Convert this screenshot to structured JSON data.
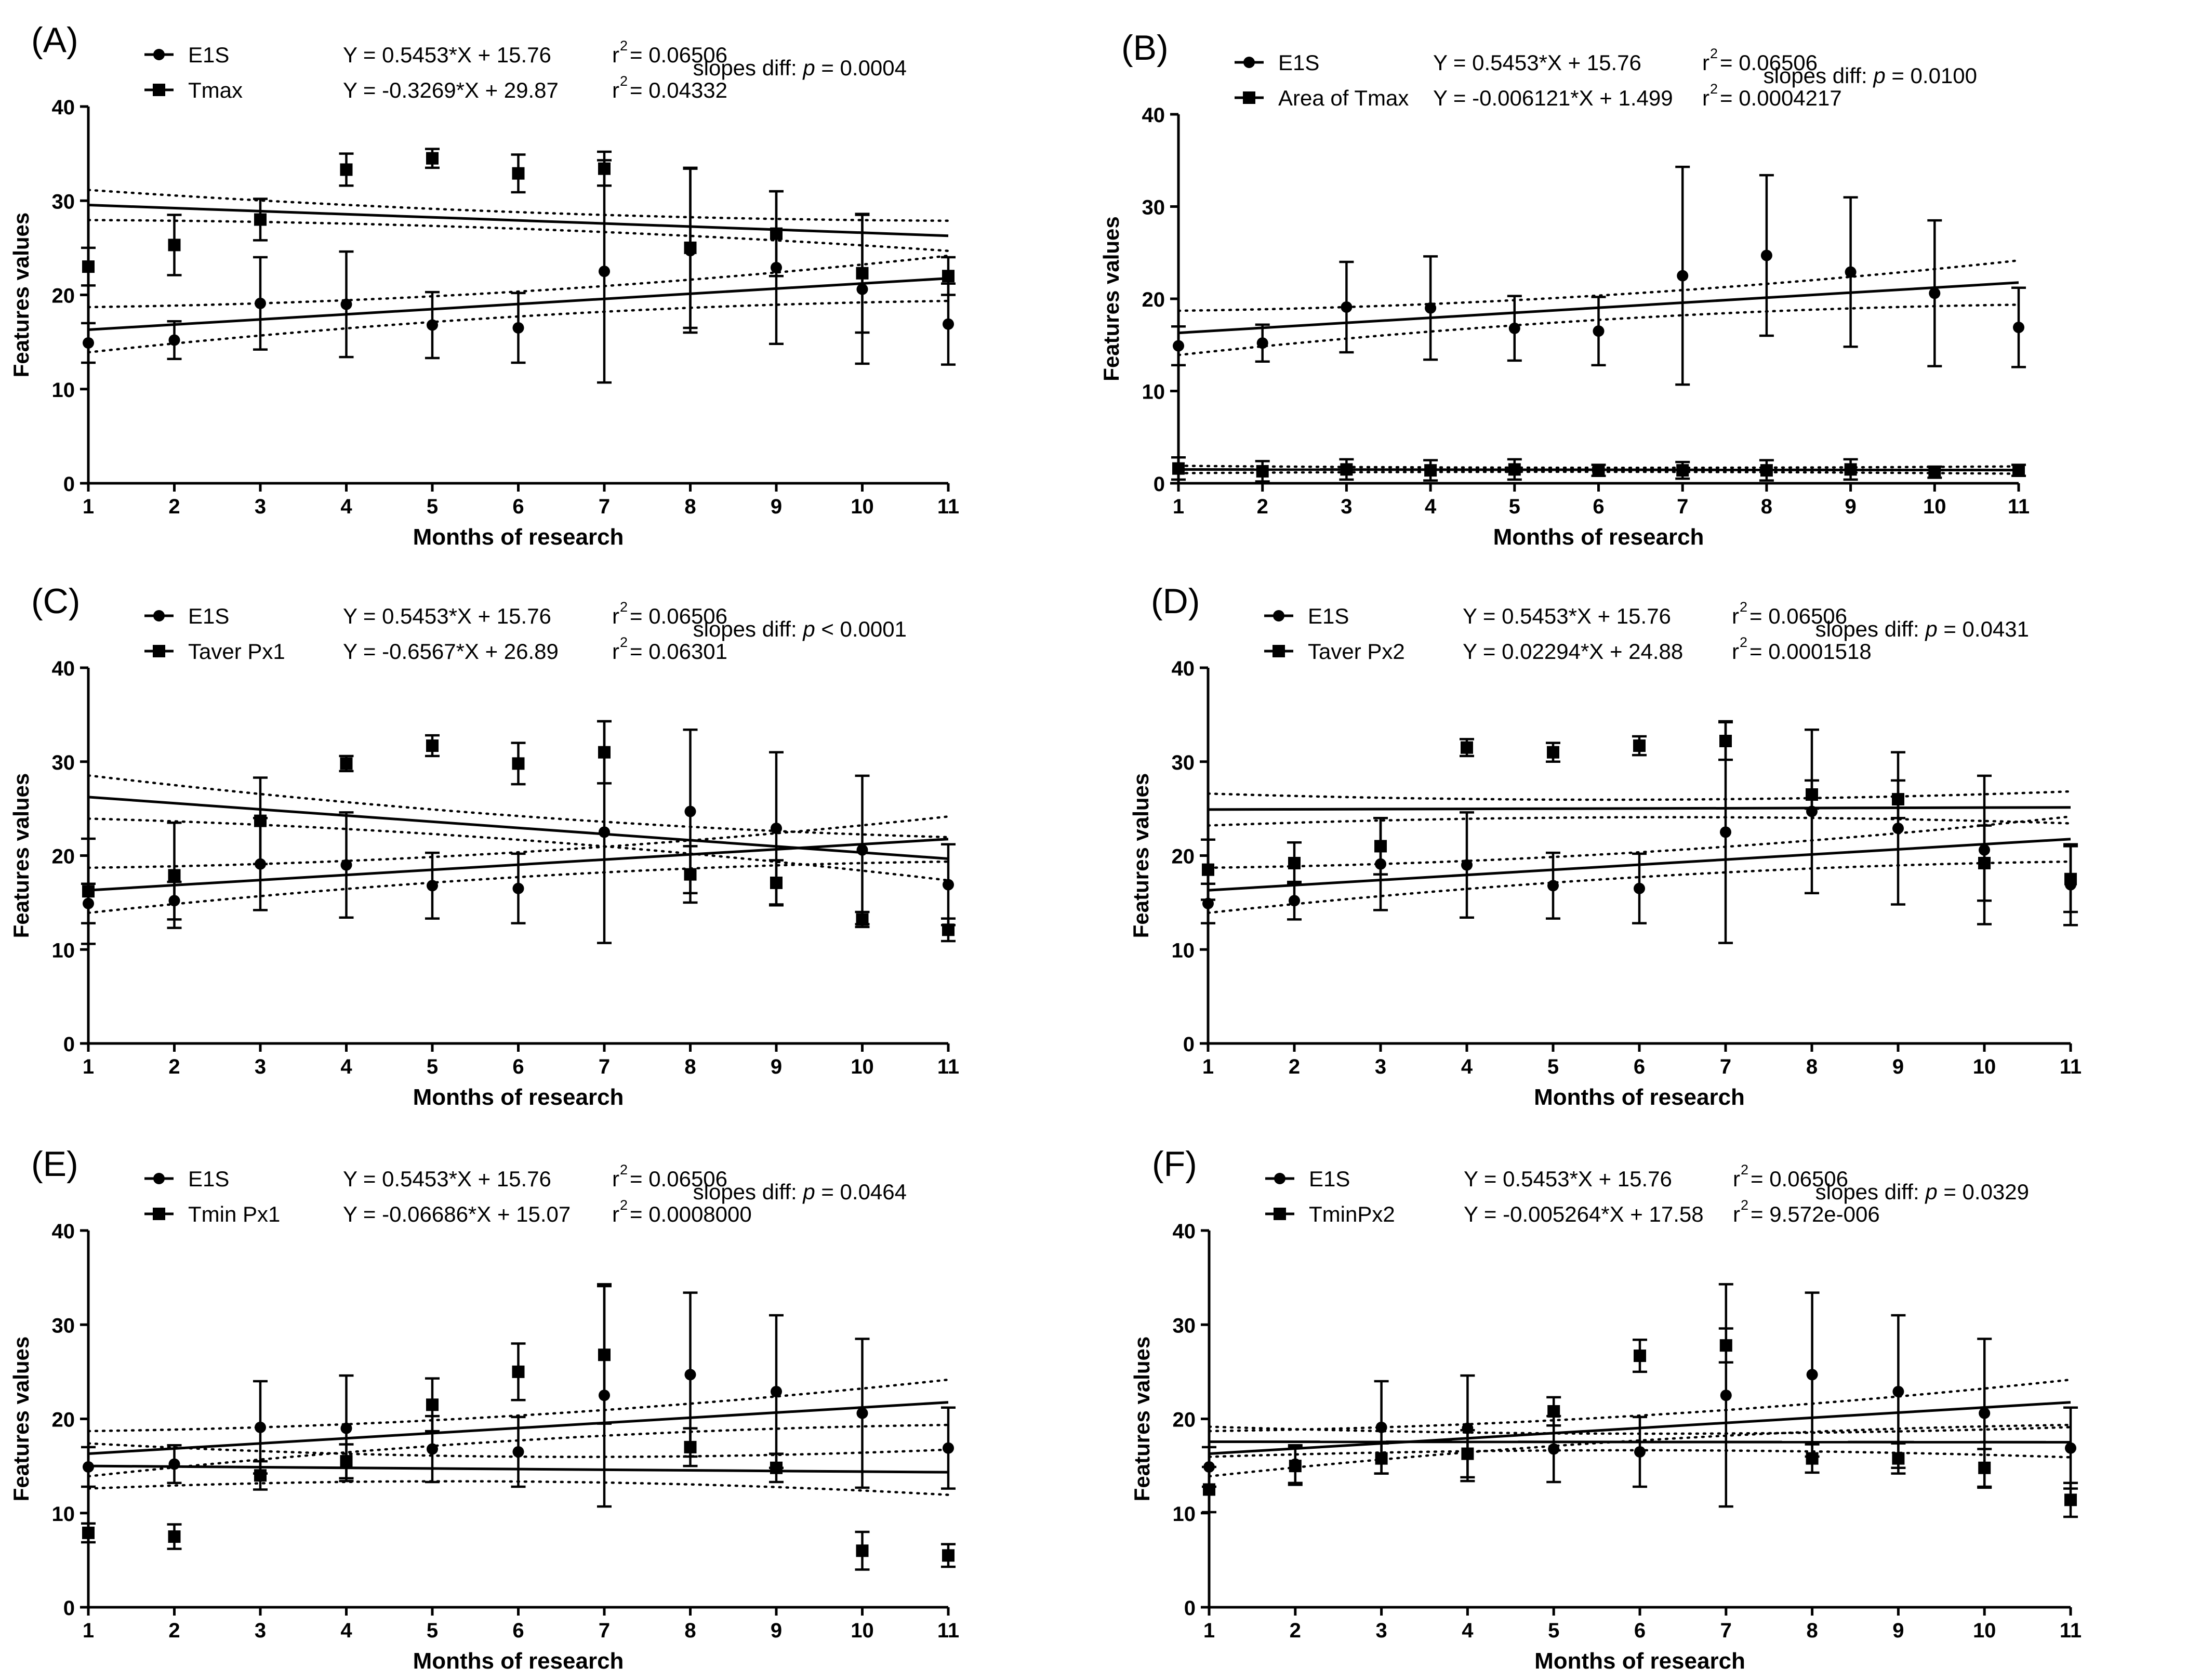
{
  "figure": {
    "panel_count": 6
  },
  "chart_data": [
    {
      "type": "scatter",
      "panel_label": "(A)",
      "xlabel": "Months of research",
      "ylabel": "Features values",
      "xlim": [
        1,
        11
      ],
      "ylim": [
        0,
        40
      ],
      "x_ticks": [
        1,
        2,
        3,
        4,
        5,
        6,
        7,
        8,
        9,
        10,
        11
      ],
      "y_ticks": [
        0,
        10,
        20,
        30,
        40
      ],
      "slopes_diff": {
        "prefix": "slopes diff: ",
        "p_symbol": "p",
        "value": " = 0.0004"
      },
      "series": [
        {
          "name": "E1S",
          "marker": "circle",
          "equation": "Y = 0.5453*X + 15.76",
          "r2_label": "r",
          "r2_value": "= 0.06506",
          "x": [
            1,
            2,
            3,
            4,
            5,
            6,
            7,
            8,
            9,
            10,
            11
          ],
          "y": [
            14.9,
            15.2,
            19.1,
            19.0,
            16.8,
            16.5,
            22.5,
            24.7,
            22.9,
            20.6,
            16.9
          ],
          "err": [
            2.1,
            2.0,
            4.9,
            5.6,
            3.5,
            3.7,
            11.8,
            8.7,
            8.1,
            7.9,
            4.3
          ],
          "slope": 0.5453,
          "intercept": 15.76,
          "ci_band": 2.4
        },
        {
          "name": "Tmax",
          "marker": "square",
          "equation": "Y = -0.3269*X + 29.87",
          "r2_label": "r",
          "r2_value": "= 0.04332",
          "x": [
            1,
            2,
            3,
            4,
            5,
            6,
            7,
            8,
            9,
            10,
            11
          ],
          "y": [
            23.0,
            25.3,
            28.0,
            33.3,
            34.5,
            32.9,
            33.4,
            25.0,
            26.5,
            22.3,
            22.0
          ],
          "err": [
            2.0,
            3.2,
            2.2,
            1.7,
            1.0,
            2.0,
            1.8,
            8.5,
            4.5,
            6.3,
            2.0
          ],
          "slope": -0.3269,
          "intercept": 29.87,
          "ci_band": 1.6
        }
      ]
    },
    {
      "type": "scatter",
      "panel_label": "(B)",
      "xlabel": "Months of research",
      "ylabel": "Features values",
      "xlim": [
        1,
        11
      ],
      "ylim": [
        0,
        40
      ],
      "x_ticks": [
        1,
        2,
        3,
        4,
        5,
        6,
        7,
        8,
        9,
        10,
        11
      ],
      "y_ticks": [
        0,
        10,
        20,
        30,
        40
      ],
      "slopes_diff": {
        "prefix": "slopes diff: ",
        "p_symbol": "p",
        "value": " = 0.0100"
      },
      "series": [
        {
          "name": "E1S",
          "marker": "circle",
          "equation": "Y = 0.5453*X + 15.76",
          "r2_label": "r",
          "r2_value": "= 0.06506",
          "x": [
            1,
            2,
            3,
            4,
            5,
            6,
            7,
            8,
            9,
            10,
            11
          ],
          "y": [
            14.9,
            15.2,
            19.1,
            19.0,
            16.8,
            16.5,
            22.5,
            24.7,
            22.9,
            20.6,
            16.9
          ],
          "err": [
            2.1,
            2.0,
            4.9,
            5.6,
            3.5,
            3.7,
            11.8,
            8.7,
            8.1,
            7.9,
            4.3
          ],
          "slope": 0.5453,
          "intercept": 15.76,
          "ci_band": 2.4
        },
        {
          "name": "Area of Tmax",
          "marker": "square",
          "equation": "Y = -0.006121*X + 1.499",
          "r2_label": "r",
          "r2_value": "= 0.0004217",
          "x": [
            1,
            2,
            3,
            4,
            5,
            6,
            7,
            8,
            9,
            10,
            11
          ],
          "y": [
            1.6,
            1.3,
            1.5,
            1.4,
            1.5,
            1.4,
            1.4,
            1.4,
            1.5,
            1.2,
            1.4
          ],
          "err": [
            1.2,
            1.1,
            1.1,
            1.1,
            1.1,
            0.6,
            0.9,
            1.1,
            1.1,
            0.6,
            0.6
          ],
          "slope": -0.006121,
          "intercept": 1.499,
          "ci_band": 0.4
        }
      ]
    },
    {
      "type": "scatter",
      "panel_label": "(C)",
      "xlabel": "Months of research",
      "ylabel": "Features values",
      "xlim": [
        1,
        11
      ],
      "ylim": [
        0,
        40
      ],
      "x_ticks": [
        1,
        2,
        3,
        4,
        5,
        6,
        7,
        8,
        9,
        10,
        11
      ],
      "y_ticks": [
        0,
        10,
        20,
        30,
        40
      ],
      "slopes_diff": {
        "prefix": "slopes diff: ",
        "p_symbol": "p",
        "value": " < 0.0001"
      },
      "series": [
        {
          "name": "E1S",
          "marker": "circle",
          "equation": "Y = 0.5453*X + 15.76",
          "r2_label": "r",
          "r2_value": "= 0.06506",
          "x": [
            1,
            2,
            3,
            4,
            5,
            6,
            7,
            8,
            9,
            10,
            11
          ],
          "y": [
            14.9,
            15.2,
            19.1,
            19.0,
            16.8,
            16.5,
            22.5,
            24.7,
            22.9,
            20.6,
            16.9
          ],
          "err": [
            2.1,
            2.0,
            4.9,
            5.6,
            3.5,
            3.7,
            11.8,
            8.7,
            8.1,
            7.9,
            4.3
          ],
          "slope": 0.5453,
          "intercept": 15.76,
          "ci_band": 2.4
        },
        {
          "name": "Taver Px1",
          "marker": "square",
          "equation": "Y = -0.6567*X + 26.89",
          "r2_label": "r",
          "r2_value": "= 0.06301",
          "x": [
            1,
            2,
            3,
            4,
            5,
            6,
            7,
            8,
            9,
            10,
            11
          ],
          "y": [
            16.2,
            17.9,
            23.7,
            29.8,
            31.7,
            29.8,
            31.0,
            18.0,
            17.1,
            13.2,
            12.1
          ],
          "err": [
            5.6,
            5.6,
            4.6,
            0.8,
            1.1,
            2.2,
            3.3,
            3.0,
            2.4,
            0.8,
            1.2
          ],
          "slope": -0.6567,
          "intercept": 26.89,
          "ci_band": 2.3
        }
      ]
    },
    {
      "type": "scatter",
      "panel_label": "(D)",
      "xlabel": "Months of research",
      "ylabel": "Features values",
      "xlim": [
        1,
        11
      ],
      "ylim": [
        0,
        40
      ],
      "x_ticks": [
        1,
        2,
        3,
        4,
        5,
        6,
        7,
        8,
        9,
        10,
        11
      ],
      "y_ticks": [
        0,
        10,
        20,
        30,
        40
      ],
      "slopes_diff": {
        "prefix": "slopes diff: ",
        "p_symbol": "p",
        "value": " = 0.0431"
      },
      "series": [
        {
          "name": "E1S",
          "marker": "circle",
          "equation": "Y = 0.5453*X + 15.76",
          "r2_label": "r",
          "r2_value": "= 0.06506",
          "x": [
            1,
            2,
            3,
            4,
            5,
            6,
            7,
            8,
            9,
            10,
            11
          ],
          "y": [
            14.9,
            15.2,
            19.1,
            19.0,
            16.8,
            16.5,
            22.5,
            24.7,
            22.9,
            20.6,
            16.9
          ],
          "err": [
            2.1,
            2.0,
            4.9,
            5.6,
            3.5,
            3.7,
            11.8,
            8.7,
            8.1,
            7.9,
            4.3
          ],
          "slope": 0.5453,
          "intercept": 15.76,
          "ci_band": 2.4
        },
        {
          "name": "Taver Px2",
          "marker": "square",
          "equation": "Y = 0.02294*X + 24.88",
          "r2_label": "r",
          "r2_value": "= 0.0001518",
          "x": [
            1,
            2,
            3,
            4,
            5,
            6,
            7,
            8,
            9,
            10,
            11
          ],
          "y": [
            18.5,
            19.2,
            21.0,
            31.5,
            31.0,
            31.7,
            32.2,
            26.5,
            26.0,
            19.2,
            17.5
          ],
          "err": [
            3.2,
            2.2,
            3.0,
            0.9,
            1.0,
            1.0,
            2.0,
            1.5,
            2.0,
            4.0,
            3.5
          ],
          "slope": 0.02294,
          "intercept": 24.88,
          "ci_band": 1.7
        }
      ]
    },
    {
      "type": "scatter",
      "panel_label": "(E)",
      "xlabel": "Months of research",
      "ylabel": "Features values",
      "xlim": [
        1,
        11
      ],
      "ylim": [
        0,
        40
      ],
      "x_ticks": [
        1,
        2,
        3,
        4,
        5,
        6,
        7,
        8,
        9,
        10,
        11
      ],
      "y_ticks": [
        0,
        10,
        20,
        30,
        40
      ],
      "slopes_diff": {
        "prefix": "slopes diff: ",
        "p_symbol": "p",
        "value": " = 0.0464"
      },
      "series": [
        {
          "name": "E1S",
          "marker": "circle",
          "equation": "Y = 0.5453*X + 15.76",
          "r2_label": "r",
          "r2_value": "= 0.06506",
          "x": [
            1,
            2,
            3,
            4,
            5,
            6,
            7,
            8,
            9,
            10,
            11
          ],
          "y": [
            14.9,
            15.2,
            19.1,
            19.0,
            16.8,
            16.5,
            22.5,
            24.7,
            22.9,
            20.6,
            16.9
          ],
          "err": [
            2.1,
            2.0,
            4.9,
            5.6,
            3.5,
            3.7,
            11.8,
            8.7,
            8.1,
            7.9,
            4.3
          ],
          "slope": 0.5453,
          "intercept": 15.76,
          "ci_band": 2.4
        },
        {
          "name": "Tmin Px1",
          "marker": "square",
          "equation": "Y = -0.06686*X + 15.07",
          "r2_label": "r",
          "r2_value": "= 0.0008000",
          "x": [
            1,
            2,
            3,
            4,
            5,
            6,
            7,
            8,
            9,
            10,
            11
          ],
          "y": [
            7.9,
            7.5,
            14.0,
            15.5,
            21.5,
            25.0,
            26.8,
            17.0,
            14.8,
            6.0,
            5.5
          ],
          "err": [
            1.0,
            1.3,
            1.5,
            1.8,
            2.8,
            3.0,
            7.3,
            2.0,
            1.5,
            2.0,
            1.2
          ],
          "slope": -0.06686,
          "intercept": 15.07,
          "ci_band": 2.4
        }
      ]
    },
    {
      "type": "scatter",
      "panel_label": "(F)",
      "xlabel": "Months of research",
      "ylabel": "Features values",
      "xlim": [
        1,
        11
      ],
      "ylim": [
        0,
        40
      ],
      "x_ticks": [
        1,
        2,
        3,
        4,
        5,
        6,
        7,
        8,
        9,
        10,
        11
      ],
      "y_ticks": [
        0,
        10,
        20,
        30,
        40
      ],
      "slopes_diff": {
        "prefix": "slopes diff: ",
        "p_symbol": "p",
        "value": " = 0.0329"
      },
      "series": [
        {
          "name": "E1S",
          "marker": "circle",
          "equation": "Y = 0.5453*X + 15.76",
          "r2_label": "r",
          "r2_value": "= 0.06506",
          "x": [
            1,
            2,
            3,
            4,
            5,
            6,
            7,
            8,
            9,
            10,
            11
          ],
          "y": [
            14.9,
            15.2,
            19.1,
            19.0,
            16.8,
            16.5,
            22.5,
            24.7,
            22.9,
            20.6,
            16.9
          ],
          "err": [
            2.1,
            2.0,
            4.9,
            5.6,
            3.5,
            3.7,
            11.8,
            8.7,
            8.1,
            7.9,
            4.3
          ],
          "slope": 0.5453,
          "intercept": 15.76,
          "ci_band": 2.4
        },
        {
          "name": "TminPx2",
          "marker": "square",
          "equation": "Y = -0.005264*X + 17.58",
          "r2_label": "r",
          "r2_value": "= 9.572e-006",
          "x": [
            1,
            2,
            3,
            4,
            5,
            6,
            7,
            8,
            9,
            10,
            11
          ],
          "y": [
            12.5,
            15.0,
            15.8,
            16.3,
            20.8,
            26.7,
            27.8,
            15.8,
            15.8,
            14.8,
            11.4
          ],
          "err": [
            2.4,
            2.0,
            1.6,
            2.5,
            1.5,
            1.7,
            1.8,
            1.5,
            1.6,
            2.0,
            1.8
          ],
          "slope": -0.005264,
          "intercept": 17.58,
          "ci_band": 1.6
        }
      ]
    }
  ]
}
